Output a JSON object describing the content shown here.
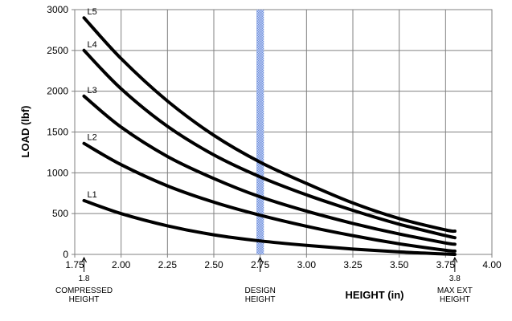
{
  "chart_data": {
    "type": "line",
    "title": "",
    "xlabel": "HEIGHT (in)",
    "ylabel": "LOAD (lbf)",
    "xlim": [
      1.75,
      4.0
    ],
    "ylim": [
      0,
      3000
    ],
    "x_ticks": [
      "1.75",
      "2.00",
      "2.25",
      "2.50",
      "2.75",
      "3.00",
      "3.25",
      "3.50",
      "3.75",
      "4.00"
    ],
    "y_ticks": [
      "0",
      "500",
      "1000",
      "1500",
      "2000",
      "2500",
      "3000"
    ],
    "grid": true,
    "x": [
      1.8,
      2.0,
      2.25,
      2.5,
      2.75,
      3.0,
      3.25,
      3.5,
      3.75,
      3.8
    ],
    "series": [
      {
        "name": "L1",
        "values": [
          660,
          500,
          350,
          240,
          165,
          110,
          65,
          30,
          5,
          0
        ]
      },
      {
        "name": "L2",
        "values": [
          1360,
          1100,
          840,
          640,
          480,
          345,
          230,
          130,
          50,
          40
        ]
      },
      {
        "name": "L3",
        "values": [
          1940,
          1560,
          1200,
          930,
          705,
          530,
          380,
          250,
          140,
          125
        ]
      },
      {
        "name": "L4",
        "values": [
          2500,
          2030,
          1570,
          1220,
          950,
          730,
          540,
          370,
          230,
          205
        ]
      },
      {
        "name": "L5",
        "values": [
          2900,
          2400,
          1880,
          1460,
          1130,
          870,
          630,
          440,
          300,
          285
        ]
      }
    ],
    "series_color": "#000000",
    "design_band": {
      "x_from": 2.73,
      "x_to": 2.77,
      "color": "#9bb5ea"
    },
    "markers": [
      {
        "x": 1.8,
        "value_label": "1.8",
        "label_lines": [
          "COMPRESSED",
          "HEIGHT"
        ]
      },
      {
        "x": 2.75,
        "value_label": "",
        "label_lines": [
          "DESIGN",
          "HEIGHT"
        ]
      },
      {
        "x": 3.8,
        "value_label": "3.8",
        "label_lines": [
          "MAX EXT",
          "HEIGHT"
        ]
      }
    ]
  }
}
